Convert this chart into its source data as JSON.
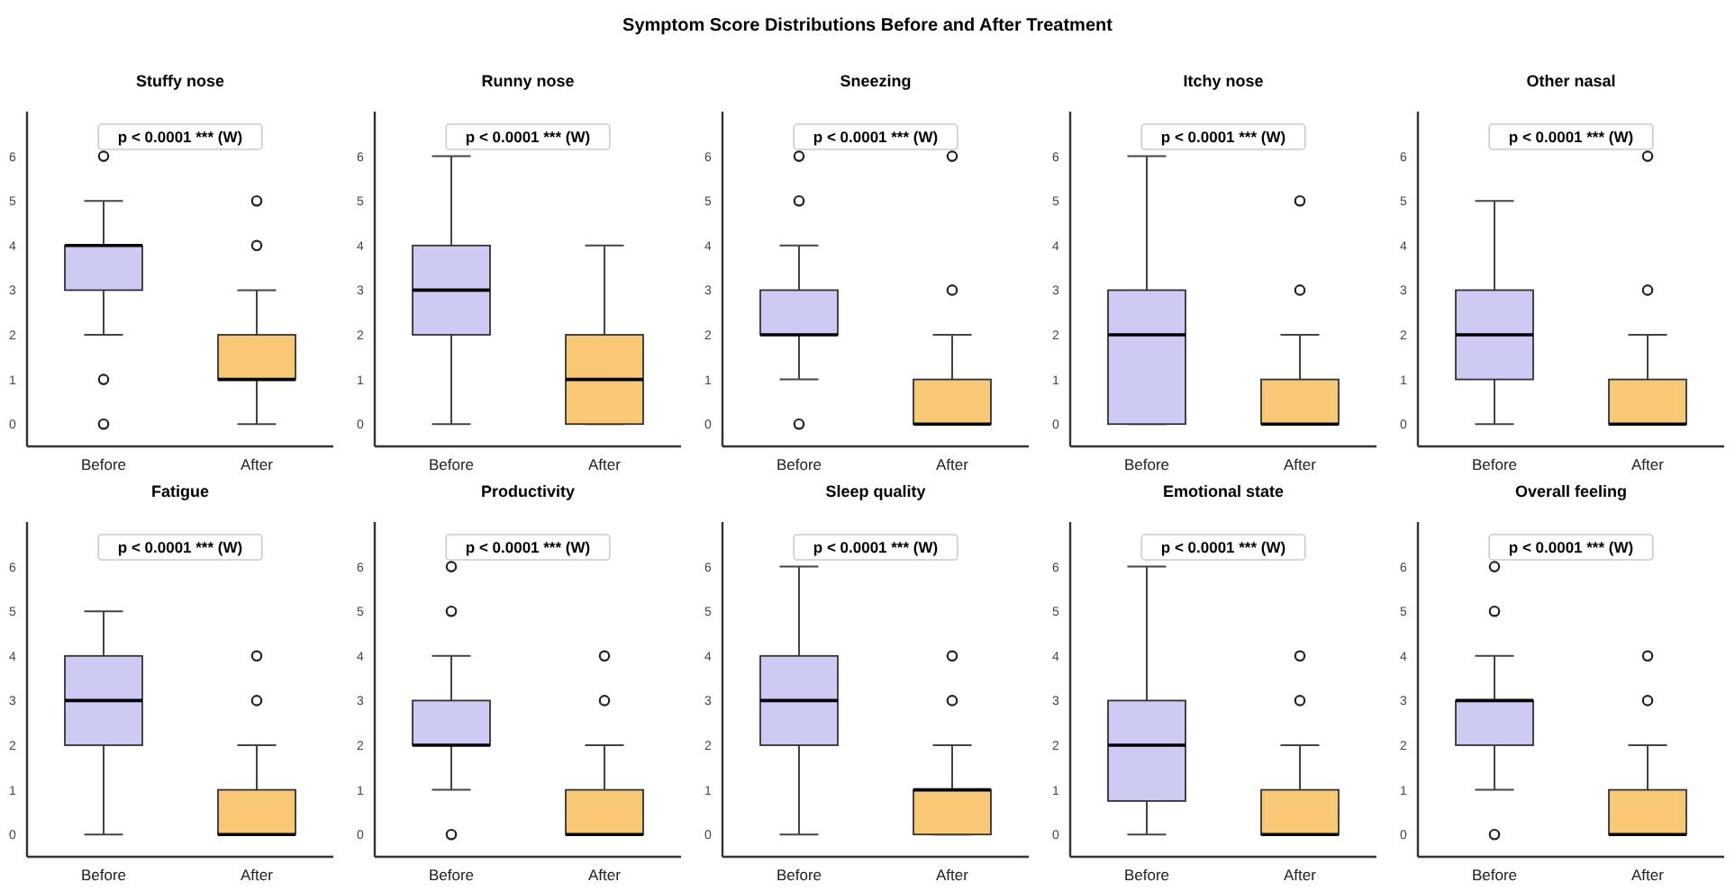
{
  "chart_data": [
    {
      "type": "other",
      "title": "Symptom Score Distributions Before and After Treatment"
    },
    {
      "type": "box",
      "title": "Stuffy nose",
      "categories": [
        "Before",
        "After"
      ],
      "colors": [
        "#cdcbf4",
        "#f9c874"
      ],
      "ylim": [
        -0.5,
        7
      ],
      "yticks": [
        0,
        1,
        2,
        3,
        4,
        5,
        6
      ],
      "annotations": [
        "p < 0.0001 *** (W)"
      ],
      "boxes": [
        {
          "low": 2,
          "q1": 3,
          "median": 4,
          "q3": 4,
          "high": 5,
          "outliers": [
            6,
            1,
            0
          ]
        },
        {
          "low": 0,
          "q1": 1,
          "median": 1,
          "q3": 2,
          "high": 3,
          "outliers": [
            5,
            4
          ]
        }
      ]
    },
    {
      "type": "box",
      "title": "Runny nose",
      "categories": [
        "Before",
        "After"
      ],
      "colors": [
        "#cdcbf4",
        "#f9c874"
      ],
      "ylim": [
        -0.5,
        7
      ],
      "yticks": [
        0,
        1,
        2,
        3,
        4,
        5,
        6
      ],
      "annotations": [
        "p < 0.0001 *** (W)"
      ],
      "boxes": [
        {
          "low": 0,
          "q1": 2,
          "median": 3,
          "q3": 4,
          "high": 6
        },
        {
          "low": 0,
          "q1": 0,
          "median": 1,
          "q3": 2,
          "high": 4
        }
      ]
    },
    {
      "type": "box",
      "title": "Sneezing",
      "categories": [
        "Before",
        "After"
      ],
      "colors": [
        "#cdcbf4",
        "#f9c874"
      ],
      "ylim": [
        -0.5,
        7
      ],
      "yticks": [
        0,
        1,
        2,
        3,
        4,
        5,
        6
      ],
      "annotations": [
        "p < 0.0001 *** (W)"
      ],
      "boxes": [
        {
          "low": 1,
          "q1": 2,
          "median": 2,
          "q3": 3,
          "high": 4,
          "outliers": [
            6,
            5,
            0
          ]
        },
        {
          "low": 0,
          "q1": 0,
          "median": 0,
          "q3": 1,
          "high": 2,
          "outliers": [
            6,
            3
          ]
        }
      ]
    },
    {
      "type": "box",
      "title": "Itchy nose",
      "categories": [
        "Before",
        "After"
      ],
      "colors": [
        "#cdcbf4",
        "#f9c874"
      ],
      "ylim": [
        -0.5,
        7
      ],
      "yticks": [
        0,
        1,
        2,
        3,
        4,
        5,
        6
      ],
      "annotations": [
        "p < 0.0001 *** (W)"
      ],
      "boxes": [
        {
          "low": 0,
          "q1": 0,
          "median": 2,
          "q3": 3,
          "high": 6
        },
        {
          "low": 0,
          "q1": 0,
          "median": 0,
          "q3": 1,
          "high": 2,
          "outliers": [
            5,
            3
          ]
        }
      ]
    },
    {
      "type": "box",
      "title": "Other nasal",
      "categories": [
        "Before",
        "After"
      ],
      "colors": [
        "#cdcbf4",
        "#f9c874"
      ],
      "ylim": [
        -0.5,
        7
      ],
      "yticks": [
        0,
        1,
        2,
        3,
        4,
        5,
        6
      ],
      "annotations": [
        "p < 0.0001 *** (W)"
      ],
      "boxes": [
        {
          "low": 0,
          "q1": 1,
          "median": 2,
          "q3": 3,
          "high": 5
        },
        {
          "low": 0,
          "q1": 0,
          "median": 0,
          "q3": 1,
          "high": 2,
          "outliers": [
            6,
            3
          ]
        }
      ]
    },
    {
      "type": "box",
      "title": "Fatigue",
      "categories": [
        "Before",
        "After"
      ],
      "colors": [
        "#cdcbf4",
        "#f9c874"
      ],
      "ylim": [
        -0.5,
        7
      ],
      "yticks": [
        0,
        1,
        2,
        3,
        4,
        5,
        6
      ],
      "annotations": [
        "p < 0.0001 *** (W)"
      ],
      "boxes": [
        {
          "low": 0,
          "q1": 2,
          "median": 3,
          "q3": 4,
          "high": 5
        },
        {
          "low": 0,
          "q1": 0,
          "median": 0,
          "q3": 1,
          "high": 2,
          "outliers": [
            4,
            3
          ]
        }
      ]
    },
    {
      "type": "box",
      "title": "Productivity",
      "categories": [
        "Before",
        "After"
      ],
      "colors": [
        "#cdcbf4",
        "#f9c874"
      ],
      "ylim": [
        -0.5,
        7
      ],
      "yticks": [
        0,
        1,
        2,
        3,
        4,
        5,
        6
      ],
      "annotations": [
        "p < 0.0001 *** (W)"
      ],
      "boxes": [
        {
          "low": 1,
          "q1": 2,
          "median": 2,
          "q3": 3,
          "high": 4,
          "outliers": [
            6,
            5,
            0
          ]
        },
        {
          "low": 0,
          "q1": 0,
          "median": 0,
          "q3": 1,
          "high": 2,
          "outliers": [
            4,
            3
          ]
        }
      ]
    },
    {
      "type": "box",
      "title": "Sleep quality",
      "categories": [
        "Before",
        "After"
      ],
      "colors": [
        "#cdcbf4",
        "#f9c874"
      ],
      "ylim": [
        -0.5,
        7
      ],
      "yticks": [
        0,
        1,
        2,
        3,
        4,
        5,
        6
      ],
      "annotations": [
        "p < 0.0001 *** (W)"
      ],
      "boxes": [
        {
          "low": 0,
          "q1": 2,
          "median": 3,
          "q3": 4,
          "high": 6
        },
        {
          "low": 0,
          "q1": 0,
          "median": 1,
          "q3": 1,
          "high": 2,
          "outliers": [
            4,
            3
          ]
        }
      ]
    },
    {
      "type": "box",
      "title": "Emotional state",
      "categories": [
        "Before",
        "After"
      ],
      "colors": [
        "#cdcbf4",
        "#f9c874"
      ],
      "ylim": [
        -0.5,
        7
      ],
      "yticks": [
        0,
        1,
        2,
        3,
        4,
        5,
        6
      ],
      "annotations": [
        "p < 0.0001 *** (W)"
      ],
      "boxes": [
        {
          "low": 0,
          "q1": 0.75,
          "median": 2,
          "q3": 3,
          "high": 6
        },
        {
          "low": 0,
          "q1": 0,
          "median": 0,
          "q3": 1,
          "high": 2,
          "outliers": [
            4,
            3
          ]
        }
      ]
    },
    {
      "type": "box",
      "title": "Overall feeling",
      "categories": [
        "Before",
        "After"
      ],
      "colors": [
        "#cdcbf4",
        "#f9c874"
      ],
      "ylim": [
        -0.5,
        7
      ],
      "yticks": [
        0,
        1,
        2,
        3,
        4,
        5,
        6
      ],
      "annotations": [
        "p < 0.0001 *** (W)"
      ],
      "boxes": [
        {
          "low": 1,
          "q1": 2,
          "median": 3,
          "q3": 3,
          "high": 4,
          "outliers": [
            6,
            5,
            0
          ]
        },
        {
          "low": 0,
          "q1": 0,
          "median": 0,
          "q3": 1,
          "high": 2,
          "outliers": [
            4,
            3
          ]
        }
      ]
    }
  ]
}
